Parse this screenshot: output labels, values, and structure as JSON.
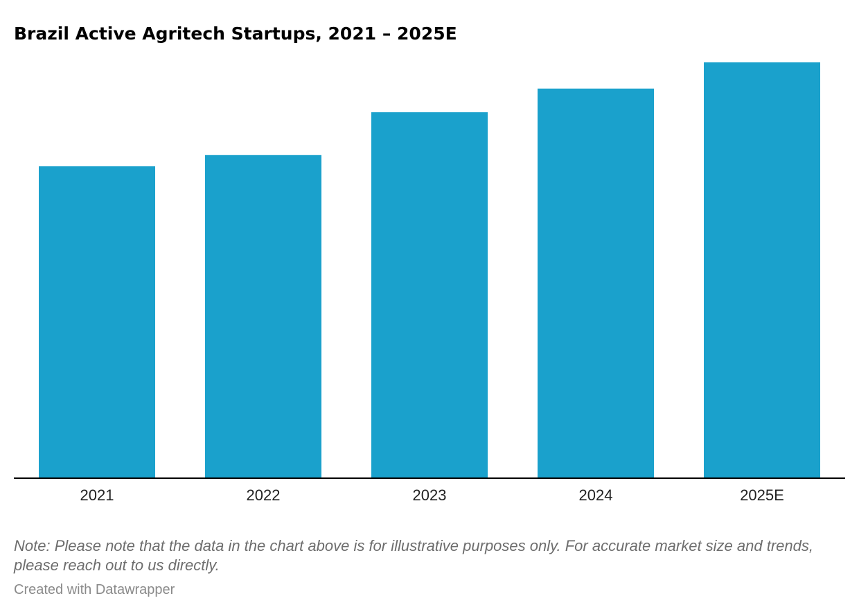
{
  "chart_data": {
    "type": "bar",
    "title": "Brazil Active Agritech Startups, 2021 – 2025E",
    "categories": [
      "2021",
      "2022",
      "2023",
      "2024",
      "2025E"
    ],
    "values": [
      75,
      77.7,
      88,
      93.7,
      100
    ],
    "xlabel": "",
    "ylabel": "",
    "ylim": [
      0,
      100
    ],
    "grid": false,
    "bar_color": "#1aa1cc",
    "axis_color": "#000000"
  },
  "footer": {
    "note": "Note: Please note that the data in the chart above is for illustrative purposes only. For accurate market size and trends, please reach out to us directly.",
    "credit": "Created with Datawrapper"
  }
}
